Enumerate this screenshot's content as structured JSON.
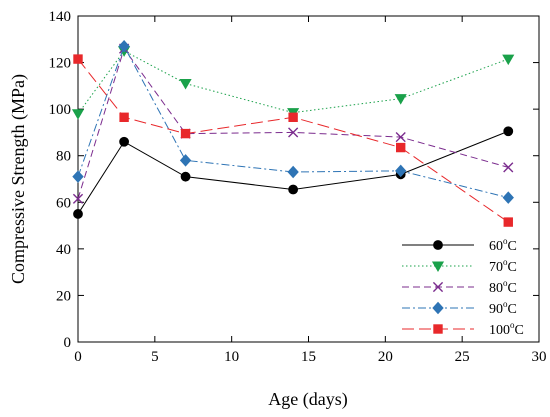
{
  "chart_data": {
    "type": "line",
    "xlabel": "Age (days)",
    "ylabel": "Compressive Strength (MPa)",
    "xlim": [
      0,
      30
    ],
    "ylim": [
      0,
      140
    ],
    "xticks": [
      0,
      5,
      10,
      15,
      20,
      25,
      30
    ],
    "yticks": [
      0,
      20,
      40,
      60,
      80,
      100,
      120,
      140
    ],
    "grid": false,
    "legend_position": "bottom-right",
    "x": [
      0,
      3,
      7,
      14,
      21,
      28
    ],
    "series": [
      {
        "name": "60",
        "unit": "oC",
        "color": "#000000",
        "marker": "circle",
        "line_style": "solid",
        "values": [
          55,
          86,
          71,
          65.5,
          72,
          90.5
        ]
      },
      {
        "name": "70",
        "unit": "oC",
        "color": "#1aa14a",
        "marker": "triangle-down",
        "line_style": "dotted",
        "values": [
          98,
          125,
          111,
          98.5,
          104.5,
          121.5
        ]
      },
      {
        "name": "80",
        "unit": "oC",
        "color": "#7b2c8e",
        "marker": "x",
        "line_style": "dashed",
        "values": [
          61.5,
          126,
          89.5,
          90,
          88,
          75
        ]
      },
      {
        "name": "90",
        "unit": "oC",
        "color": "#2e74b5",
        "marker": "diamond",
        "line_style": "dash-dot",
        "values": [
          71,
          127,
          78,
          73,
          73.5,
          62
        ]
      },
      {
        "name": "100",
        "unit": "oC",
        "color": "#e8282b",
        "marker": "square",
        "line_style": "long-dash",
        "values": [
          121.5,
          96.5,
          89.5,
          96.5,
          83.5,
          51.5
        ]
      }
    ]
  }
}
